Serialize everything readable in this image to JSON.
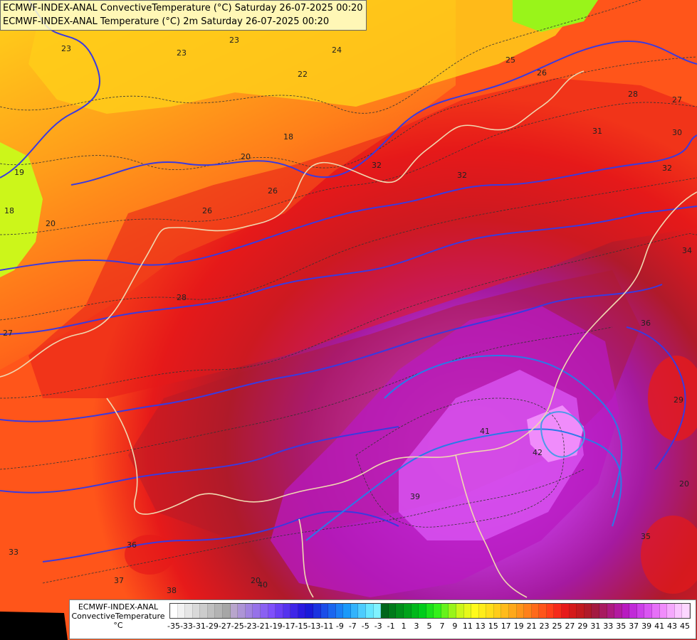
{
  "titles": {
    "line1": "ECMWF-INDEX-ANAL ConvectiveTemperature (°C) Saturday 26-07-2025 00:20",
    "line2": "ECMWF-INDEX-ANAL Temperature (°C) 2m Saturday 26-07-2025 00:20"
  },
  "legend": {
    "title_line1": "ECMWF-INDEX-ANAL",
    "title_line2": "ConvectiveTemperature",
    "unit": "°C",
    "tick_labels": [
      "-35",
      "-33",
      "-31",
      "-29",
      "-27",
      "-25",
      "-23",
      "-21",
      "-19",
      "-17",
      "-15",
      "-13",
      "-11",
      "-9",
      "-7",
      "-5",
      "-3",
      "-1",
      "1",
      "3",
      "5",
      "7",
      "9",
      "11",
      "13",
      "15",
      "17",
      "19",
      "21",
      "23",
      "25",
      "27",
      "29",
      "31",
      "33",
      "35",
      "37",
      "39",
      "41",
      "43",
      "45"
    ],
    "colors": [
      "#ffffff",
      "#f2f2f2",
      "#e6e6e6",
      "#d9d9d9",
      "#cccccc",
      "#bfbfbf",
      "#b3b3b3",
      "#a6a6a6",
      "#b8a5cc",
      "#ad94d6",
      "#a183e0",
      "#9672e9",
      "#8a61f2",
      "#7f50fb",
      "#6a3ff5",
      "#5533ee",
      "#3f26e7",
      "#2a1ae0",
      "#1a1ad9",
      "#1a33e0",
      "#1a4de8",
      "#1a66ef",
      "#1a80f5",
      "#1a99f9",
      "#33b3fb",
      "#4dccfd",
      "#66e6ff",
      "#80f2ff",
      "#00661a",
      "#007a1a",
      "#008f1a",
      "#00a31a",
      "#00b81a",
      "#00cc1a",
      "#1ae01a",
      "#33f01a",
      "#66f21a",
      "#99f41a",
      "#ccf61a",
      "#e6f81a",
      "#fffa1a",
      "#ffec1a",
      "#ffdd1a",
      "#ffcc1a",
      "#ffbb1a",
      "#ffa81a",
      "#ff941a",
      "#ff801a",
      "#ff6a1a",
      "#ff551a",
      "#ff3f1a",
      "#f52a1a",
      "#e61a1a",
      "#d41a1a",
      "#c21a1f",
      "#b01a2a",
      "#a31a40",
      "#a81a60",
      "#ad1a80",
      "#b21aa0",
      "#b81ac0",
      "#c02ad8",
      "#cc40e8",
      "#d955f2",
      "#e670f8",
      "#f08cfb",
      "#f5a8fd",
      "#fac4ff",
      "#fcd6ff"
    ]
  },
  "contour_labels": [
    "23",
    "23",
    "23",
    "22",
    "24",
    "18",
    "18",
    "19",
    "20",
    "20",
    "26",
    "26",
    "25",
    "26",
    "28",
    "27",
    "30",
    "31",
    "32",
    "32",
    "32",
    "34",
    "28",
    "27",
    "36",
    "40",
    "41",
    "42",
    "39",
    "38",
    "37",
    "33",
    "36",
    "35",
    "20",
    "20",
    "29"
  ]
}
